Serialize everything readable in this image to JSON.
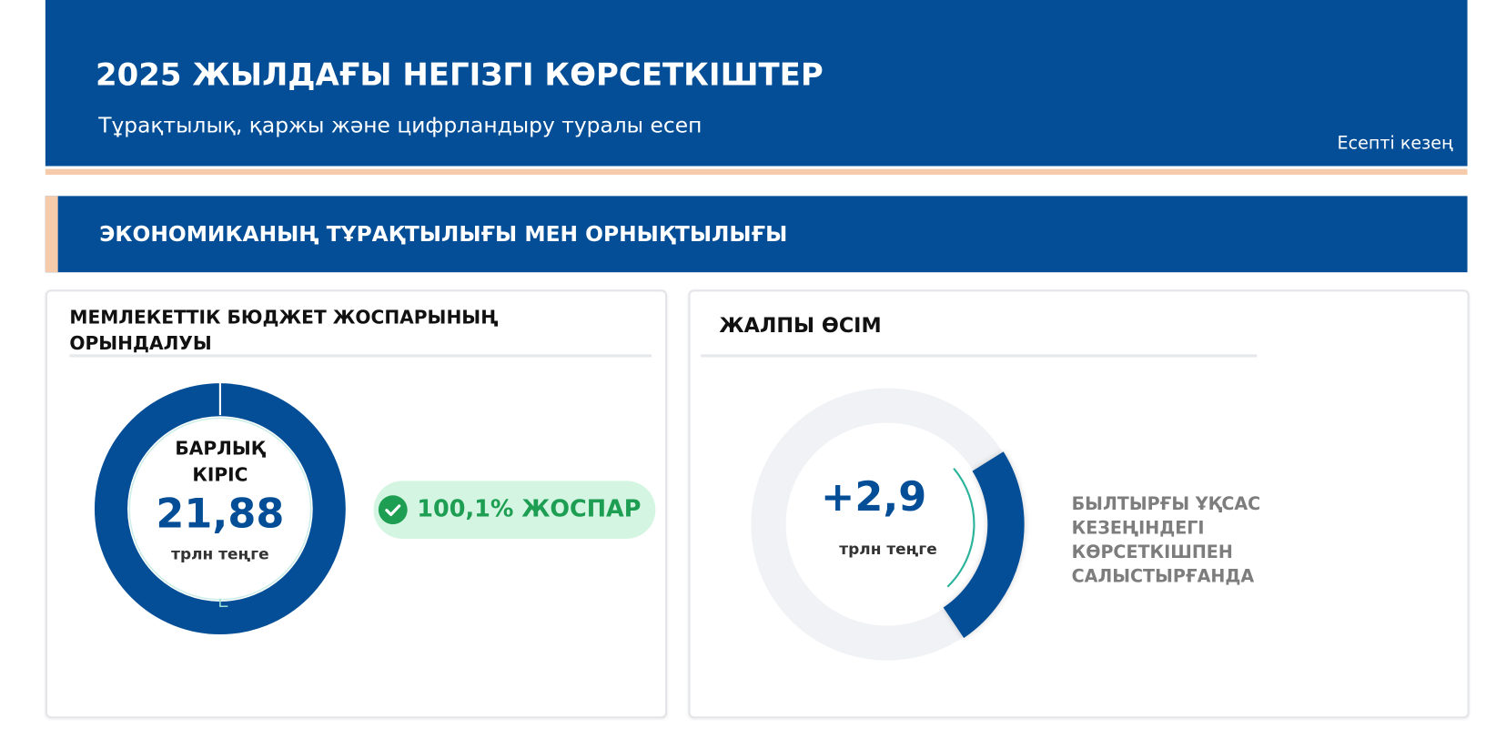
{
  "header": {
    "title": "2025 ЖЫЛДАҒЫ НЕГІЗГІ КӨРСЕТКІШТЕР",
    "subtitle": "Тұрақтылық, қаржы және цифрландыру туралы есеп",
    "period_label": "Есепті кезең"
  },
  "section": {
    "title": "ЭКОНОМИКАНЫҢ ТҰРАҚТЫЛЫҒЫ МЕН ОРНЫҚТЫЛЫҒЫ"
  },
  "budget_card": {
    "title_line1": "МЕМЛЕКЕТТІК БЮДЖЕТ ЖОСПАРЫНЫҢ",
    "title_line2": "ОРЫНДАЛУЫ",
    "label_line1": "БАРЛЫҚ",
    "label_line2": "КІРІС",
    "value": "21,88",
    "unit": "трлн теңге",
    "plan_badge": "100,1% ЖОСПАР",
    "plan_percent": 100.1,
    "badge_icon": "check-circle-icon"
  },
  "growth_card": {
    "title": "ЖАЛПЫ ӨСІМ",
    "value": "+2,9",
    "unit": "трлн теңге",
    "comparison_lines": [
      "БЫЛТЫРҒЫ ҰҚСАС",
      "КЕЗЕҢІНДЕГІ",
      "КӨРСЕТКІШПЕН",
      "САЛЫСТЫРҒАНДА"
    ]
  },
  "colors": {
    "primary": "#034E96",
    "accent_peach": "#F6CBAB",
    "success": "#1E9E52",
    "success_bg": "#D3F5E2",
    "teal": "#2BB39B",
    "ring_bg": "#F0F2F5"
  }
}
